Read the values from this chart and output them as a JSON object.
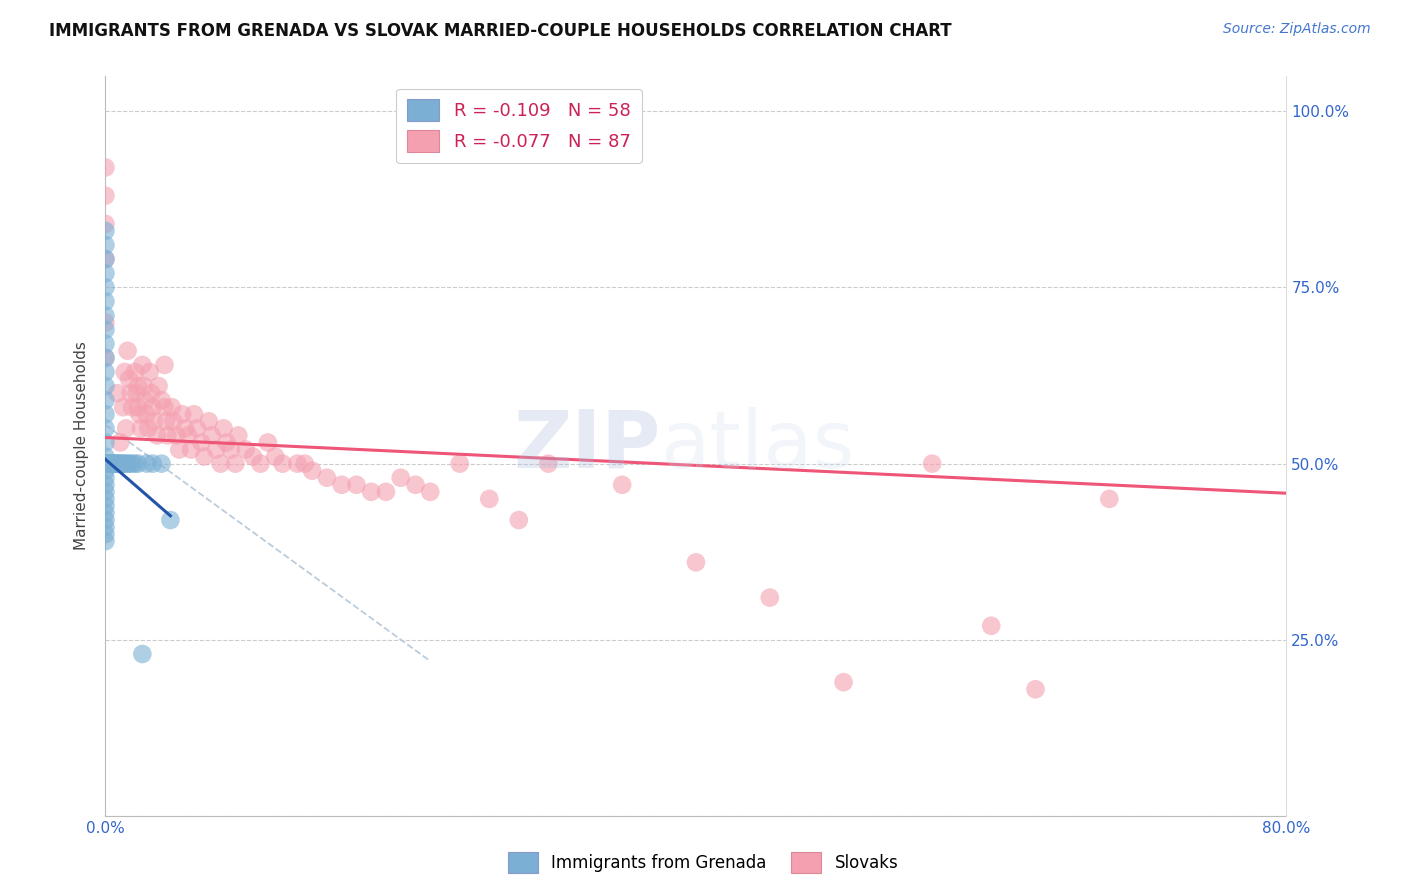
{
  "title": "IMMIGRANTS FROM GRENADA VS SLOVAK MARRIED-COUPLE HOUSEHOLDS CORRELATION CHART",
  "source": "Source: ZipAtlas.com",
  "ylabel": "Married-couple Households",
  "xlim": [
    0.0,
    0.8
  ],
  "ylim": [
    0.0,
    1.05
  ],
  "xticks": [
    0.0,
    0.1,
    0.2,
    0.3,
    0.4,
    0.5,
    0.6,
    0.7,
    0.8
  ],
  "xticklabels": [
    "0.0%",
    "",
    "",
    "",
    "",
    "",
    "",
    "",
    "80.0%"
  ],
  "ytick_positions": [
    0.0,
    0.25,
    0.5,
    0.75,
    1.0
  ],
  "yticklabels_right": [
    "",
    "25.0%",
    "50.0%",
    "75.0%",
    "100.0%"
  ],
  "legend1_label": "R = -0.109   N = 58",
  "legend2_label": "R = -0.077   N = 87",
  "watermark_zip": "ZIP",
  "watermark_atlas": "atlas",
  "blue_color": "#7BAFD4",
  "pink_color": "#F4A0B0",
  "blue_line_color": "#2255AA",
  "pink_line_color": "#EE5577",
  "dashed_line_color": "#BBCCDD",
  "grenada_scatter_x": [
    0.0,
    0.0,
    0.0,
    0.0,
    0.0,
    0.0,
    0.0,
    0.0,
    0.0,
    0.0,
    0.0,
    0.0,
    0.0,
    0.0,
    0.0,
    0.0,
    0.0,
    0.0,
    0.0,
    0.0,
    0.0,
    0.0,
    0.0,
    0.0,
    0.0,
    0.0,
    0.0,
    0.0,
    0.0,
    0.0,
    0.002,
    0.002,
    0.002,
    0.003,
    0.003,
    0.004,
    0.004,
    0.005,
    0.005,
    0.006,
    0.007,
    0.007,
    0.008,
    0.009,
    0.01,
    0.011,
    0.012,
    0.013,
    0.015,
    0.016,
    0.018,
    0.02,
    0.022,
    0.025,
    0.028,
    0.032,
    0.038,
    0.044
  ],
  "grenada_scatter_y": [
    0.83,
    0.81,
    0.79,
    0.77,
    0.75,
    0.73,
    0.71,
    0.69,
    0.67,
    0.65,
    0.63,
    0.61,
    0.59,
    0.57,
    0.55,
    0.53,
    0.51,
    0.5,
    0.5,
    0.49,
    0.48,
    0.47,
    0.46,
    0.45,
    0.44,
    0.43,
    0.42,
    0.41,
    0.4,
    0.39,
    0.5,
    0.5,
    0.5,
    0.5,
    0.5,
    0.5,
    0.5,
    0.5,
    0.5,
    0.5,
    0.5,
    0.5,
    0.5,
    0.5,
    0.5,
    0.5,
    0.5,
    0.5,
    0.5,
    0.5,
    0.5,
    0.5,
    0.5,
    0.23,
    0.5,
    0.5,
    0.5,
    0.42
  ],
  "slovak_scatter_x": [
    0.0,
    0.0,
    0.0,
    0.0,
    0.0,
    0.0,
    0.008,
    0.01,
    0.012,
    0.013,
    0.014,
    0.015,
    0.016,
    0.017,
    0.018,
    0.02,
    0.021,
    0.022,
    0.022,
    0.023,
    0.024,
    0.025,
    0.026,
    0.027,
    0.028,
    0.029,
    0.03,
    0.031,
    0.032,
    0.033,
    0.035,
    0.036,
    0.038,
    0.04,
    0.04,
    0.041,
    0.042,
    0.045,
    0.046,
    0.048,
    0.05,
    0.052,
    0.054,
    0.056,
    0.058,
    0.06,
    0.062,
    0.065,
    0.067,
    0.07,
    0.072,
    0.075,
    0.078,
    0.08,
    0.082,
    0.085,
    0.088,
    0.09,
    0.095,
    0.1,
    0.105,
    0.11,
    0.115,
    0.12,
    0.13,
    0.135,
    0.14,
    0.15,
    0.16,
    0.17,
    0.18,
    0.19,
    0.2,
    0.21,
    0.22,
    0.24,
    0.26,
    0.28,
    0.3,
    0.35,
    0.4,
    0.45,
    0.5,
    0.56,
    0.6,
    0.63,
    0.68
  ],
  "slovak_scatter_y": [
    0.84,
    0.79,
    0.7,
    0.88,
    0.92,
    0.65,
    0.6,
    0.53,
    0.58,
    0.63,
    0.55,
    0.66,
    0.62,
    0.6,
    0.58,
    0.63,
    0.6,
    0.61,
    0.58,
    0.57,
    0.55,
    0.64,
    0.61,
    0.59,
    0.57,
    0.55,
    0.63,
    0.6,
    0.58,
    0.56,
    0.54,
    0.61,
    0.59,
    0.64,
    0.58,
    0.56,
    0.54,
    0.58,
    0.56,
    0.54,
    0.52,
    0.57,
    0.55,
    0.54,
    0.52,
    0.57,
    0.55,
    0.53,
    0.51,
    0.56,
    0.54,
    0.52,
    0.5,
    0.55,
    0.53,
    0.52,
    0.5,
    0.54,
    0.52,
    0.51,
    0.5,
    0.53,
    0.51,
    0.5,
    0.5,
    0.5,
    0.49,
    0.48,
    0.47,
    0.47,
    0.46,
    0.46,
    0.48,
    0.47,
    0.46,
    0.5,
    0.45,
    0.42,
    0.5,
    0.47,
    0.36,
    0.31,
    0.19,
    0.5,
    0.27,
    0.18,
    0.45
  ],
  "blue_trend_x": [
    0.0,
    0.044
  ],
  "blue_trend_y": [
    0.506,
    0.426
  ],
  "pink_trend_x": [
    0.0,
    0.8
  ],
  "pink_trend_y": [
    0.537,
    0.458
  ],
  "dashed_trend_x": [
    0.0,
    0.22
  ],
  "dashed_trend_y": [
    0.555,
    0.22
  ]
}
